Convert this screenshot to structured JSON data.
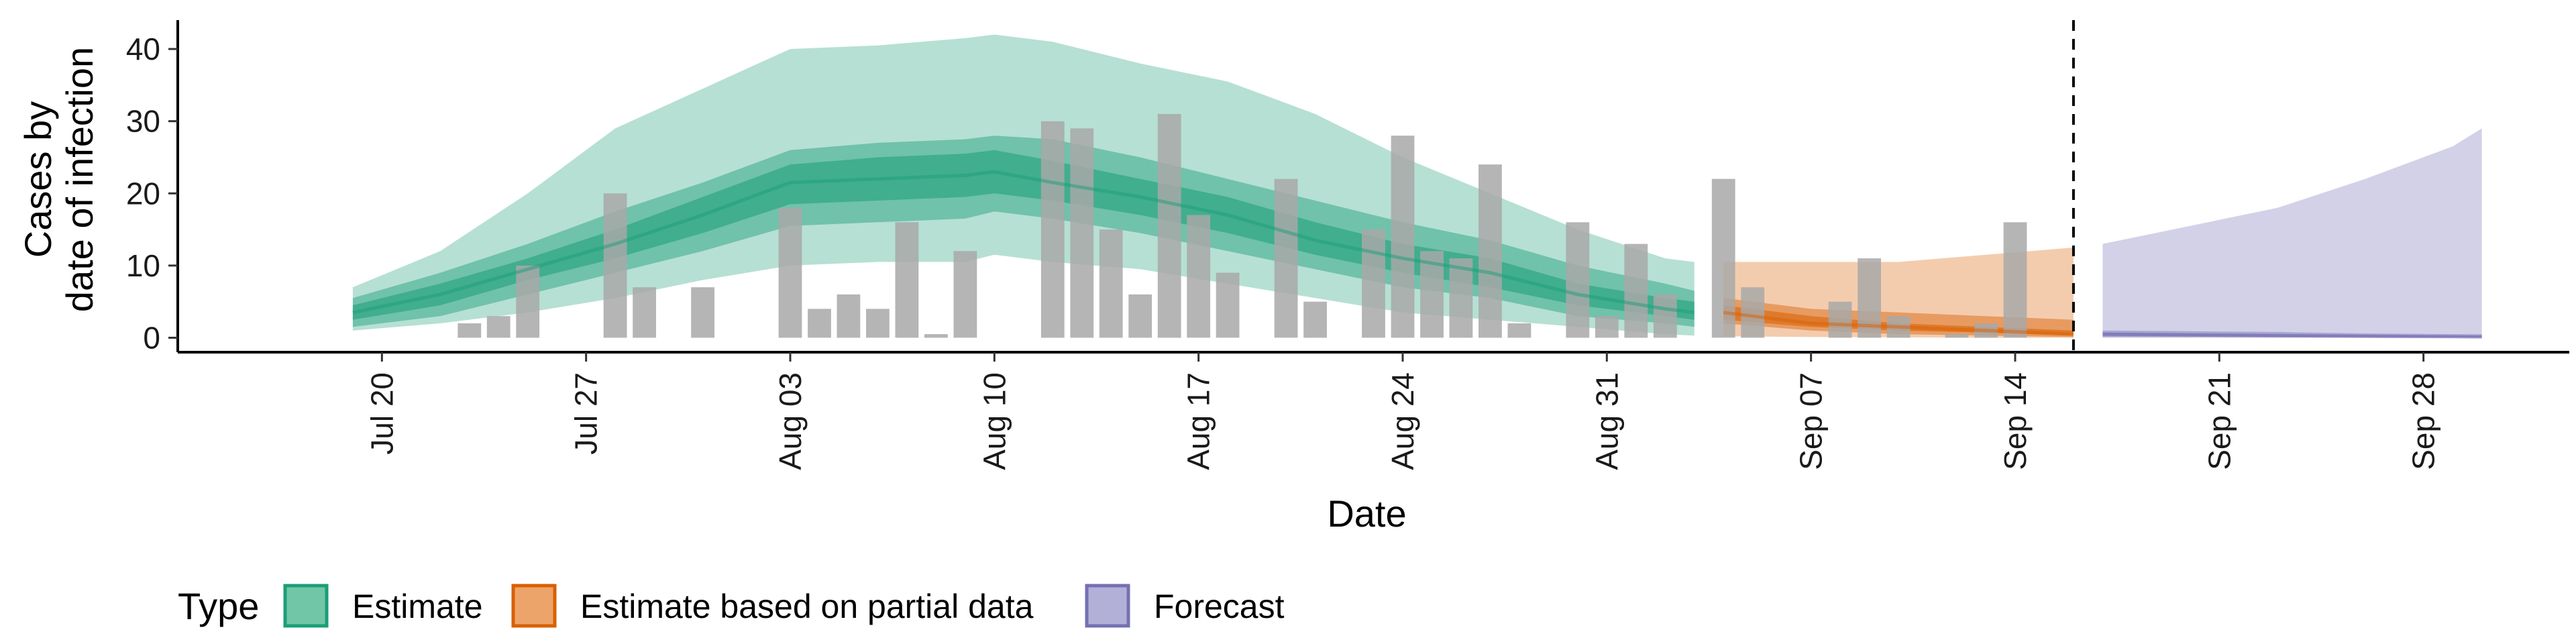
{
  "chart_data": {
    "type": "area",
    "xlabel": "Date",
    "ylabel_lines": [
      "Cases by",
      "date of infection"
    ],
    "ylim": [
      -2,
      44
    ],
    "yticks": [
      0,
      10,
      20,
      30,
      40
    ],
    "xlim": [
      "2020-07-13",
      "2020-10-03"
    ],
    "xticks": [
      {
        "date": "2020-07-20",
        "label": "Jul 20"
      },
      {
        "date": "2020-07-27",
        "label": "Jul 27"
      },
      {
        "date": "2020-08-03",
        "label": "Aug 03"
      },
      {
        "date": "2020-08-10",
        "label": "Aug 10"
      },
      {
        "date": "2020-08-17",
        "label": "Aug 17"
      },
      {
        "date": "2020-08-24",
        "label": "Aug 24"
      },
      {
        "date": "2020-08-31",
        "label": "Aug 31"
      },
      {
        "date": "2020-09-07",
        "label": "Sep 07"
      },
      {
        "date": "2020-09-14",
        "label": "Sep 14"
      },
      {
        "date": "2020-09-21",
        "label": "Sep 21"
      },
      {
        "date": "2020-09-28",
        "label": "Sep 28"
      }
    ],
    "forecast_start_date": "2020-09-16",
    "legend": {
      "title": "Type",
      "position": "bottom",
      "items": [
        {
          "label": "Estimate",
          "fill": "#72c6a8",
          "stroke": "#1b9e77"
        },
        {
          "label": "Estimate based on partial data",
          "fill": "#eda46b",
          "stroke": "#d95f02"
        },
        {
          "label": "Forecast",
          "fill": "#b3b0d8",
          "stroke": "#7570b3"
        }
      ]
    },
    "bar_color": "#a8a8a8",
    "reported_cases": [
      {
        "date": "2020-07-23",
        "value": 2
      },
      {
        "date": "2020-07-24",
        "value": 3
      },
      {
        "date": "2020-07-25",
        "value": 10
      },
      {
        "date": "2020-07-28",
        "value": 20
      },
      {
        "date": "2020-07-29",
        "value": 7
      },
      {
        "date": "2020-07-31",
        "value": 7
      },
      {
        "date": "2020-08-03",
        "value": 18
      },
      {
        "date": "2020-08-04",
        "value": 4
      },
      {
        "date": "2020-08-05",
        "value": 6
      },
      {
        "date": "2020-08-06",
        "value": 4
      },
      {
        "date": "2020-08-07",
        "value": 16
      },
      {
        "date": "2020-08-08",
        "value": 0.5
      },
      {
        "date": "2020-08-09",
        "value": 12
      },
      {
        "date": "2020-08-12",
        "value": 30
      },
      {
        "date": "2020-08-13",
        "value": 29
      },
      {
        "date": "2020-08-14",
        "value": 15
      },
      {
        "date": "2020-08-15",
        "value": 6
      },
      {
        "date": "2020-08-16",
        "value": 31
      },
      {
        "date": "2020-08-17",
        "value": 17
      },
      {
        "date": "2020-08-18",
        "value": 9
      },
      {
        "date": "2020-08-20",
        "value": 22
      },
      {
        "date": "2020-08-21",
        "value": 5
      },
      {
        "date": "2020-08-23",
        "value": 15
      },
      {
        "date": "2020-08-24",
        "value": 28
      },
      {
        "date": "2020-08-25",
        "value": 12
      },
      {
        "date": "2020-08-26",
        "value": 11
      },
      {
        "date": "2020-08-27",
        "value": 24
      },
      {
        "date": "2020-08-28",
        "value": 2
      },
      {
        "date": "2020-08-30",
        "value": 16
      },
      {
        "date": "2020-08-31",
        "value": 3
      },
      {
        "date": "2020-09-01",
        "value": 13
      },
      {
        "date": "2020-09-02",
        "value": 6
      },
      {
        "date": "2020-09-04",
        "value": 22
      },
      {
        "date": "2020-09-05",
        "value": 7
      },
      {
        "date": "2020-09-08",
        "value": 5
      },
      {
        "date": "2020-09-09",
        "value": 11
      },
      {
        "date": "2020-09-10",
        "value": 3
      },
      {
        "date": "2020-09-12",
        "value": 0.5
      },
      {
        "date": "2020-09-13",
        "value": 2
      },
      {
        "date": "2020-09-14",
        "value": 16
      }
    ],
    "series": [
      {
        "name": "Estimate",
        "dates": [
          "2020-07-19",
          "2020-07-22",
          "2020-07-25",
          "2020-07-28",
          "2020-07-31",
          "2020-08-03",
          "2020-08-06",
          "2020-08-09",
          "2020-08-10",
          "2020-08-12",
          "2020-08-15",
          "2020-08-18",
          "2020-08-21",
          "2020-08-24",
          "2020-08-27",
          "2020-08-30",
          "2020-09-02",
          "2020-09-03"
        ],
        "median": [
          3.5,
          6,
          9.5,
          13,
          17,
          21.5,
          22,
          22.5,
          23,
          21.5,
          19.5,
          17,
          13.5,
          11,
          9,
          6,
          4,
          3.5
        ],
        "lower_20": [
          2.5,
          4.5,
          8,
          11,
          14.5,
          18.5,
          19,
          19.5,
          20,
          19,
          17,
          14.5,
          11.5,
          9,
          7,
          4.5,
          3,
          2.5
        ],
        "upper_20": [
          4.5,
          7.5,
          11,
          15,
          19.5,
          24,
          25,
          25.5,
          26,
          24.5,
          22,
          19.5,
          16,
          13,
          11,
          7.5,
          5.5,
          5
        ],
        "lower_50": [
          1.5,
          3,
          6,
          9,
          12,
          15.5,
          16,
          16.5,
          17.5,
          16.5,
          14.5,
          12,
          9.5,
          7,
          5.5,
          3,
          2,
          1.5
        ],
        "upper_50": [
          5.5,
          9,
          13,
          17.5,
          21.5,
          26,
          27,
          27.5,
          28,
          27.5,
          25,
          22,
          19,
          16,
          13.5,
          10,
          7.5,
          6.5
        ],
        "lower_90": [
          1,
          2,
          3.5,
          5.5,
          8,
          10,
          10.5,
          10.5,
          11.5,
          10.5,
          9.5,
          7.5,
          5.5,
          3.5,
          2.5,
          1.5,
          0.5,
          0.3
        ],
        "upper_90": [
          7,
          12,
          20,
          29,
          34.5,
          40,
          40.5,
          41.5,
          42,
          41,
          38,
          35.5,
          31,
          25,
          20,
          15,
          11,
          10.5
        ]
      },
      {
        "name": "Estimate based on partial data",
        "dates": [
          "2020-09-04",
          "2020-09-07",
          "2020-09-10",
          "2020-09-13",
          "2020-09-16"
        ],
        "median": [
          3.5,
          2,
          1.5,
          1,
          0.5
        ],
        "lower_20": [
          2.5,
          1.5,
          1,
          0.7,
          0.3
        ],
        "upper_20": [
          4.5,
          3,
          2,
          1.5,
          1
        ],
        "lower_50": [
          2,
          1,
          0.5,
          0.3,
          0.1
        ],
        "upper_50": [
          5.5,
          4,
          3.5,
          3,
          2.5
        ],
        "lower_90": [
          0.2,
          0.1,
          0.05,
          0,
          0
        ],
        "upper_90": [
          10.5,
          10.5,
          10.5,
          11.5,
          12.5
        ]
      },
      {
        "name": "Forecast",
        "dates": [
          "2020-09-17",
          "2020-09-20",
          "2020-09-23",
          "2020-09-26",
          "2020-09-29",
          "2020-09-30"
        ],
        "median": [
          0.5,
          0.4,
          0.3,
          0.2,
          0.15,
          0.1
        ],
        "lower_20": [
          0.3,
          0.2,
          0.15,
          0.1,
          0.05,
          0.05
        ],
        "upper_20": [
          0.7,
          0.6,
          0.5,
          0.4,
          0.3,
          0.3
        ],
        "lower_50": [
          0.1,
          0.1,
          0.05,
          0.05,
          0,
          0
        ],
        "upper_50": [
          1,
          0.9,
          0.8,
          0.6,
          0.5,
          0.5
        ],
        "lower_90": [
          0,
          0,
          0,
          0,
          0,
          0
        ],
        "upper_90": [
          13,
          15.5,
          18,
          22,
          26.5,
          29
        ]
      }
    ]
  }
}
